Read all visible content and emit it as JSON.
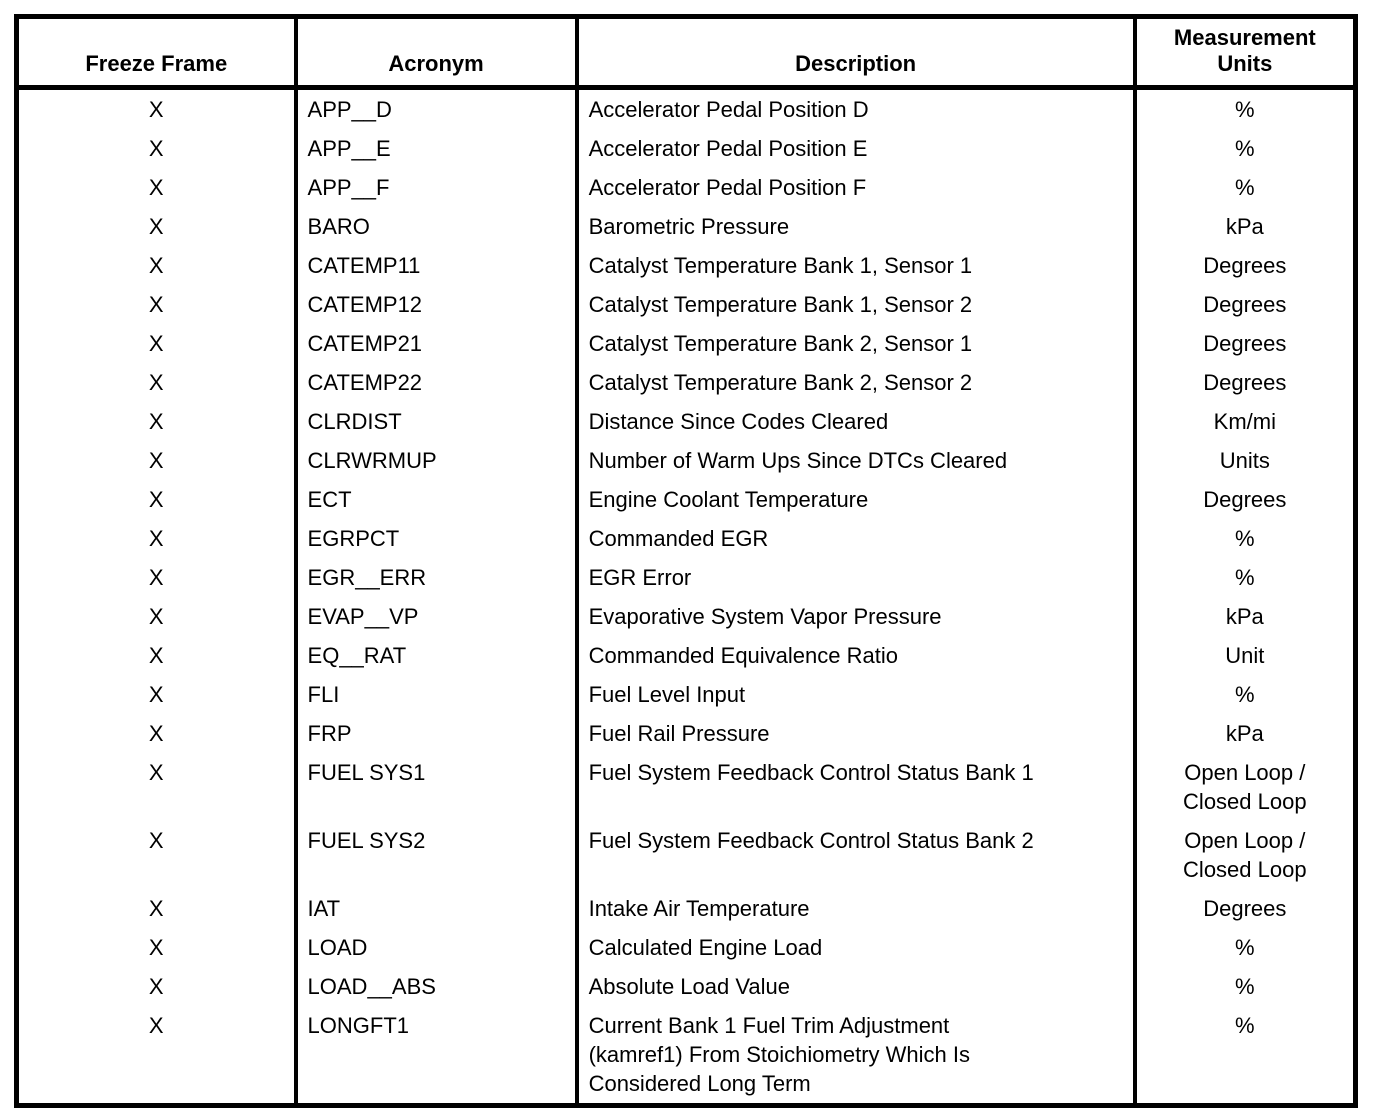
{
  "colors": {
    "background": "#ffffff",
    "border": "#000000",
    "text": "#000000"
  },
  "table": {
    "headers": {
      "freeze_frame": "Freeze Frame",
      "acronym": "Acronym",
      "description": "Description",
      "units": "Measurement\nUnits"
    },
    "rows": [
      {
        "freeze_frame": "X",
        "acronym": "APP__D",
        "description": "Accelerator Pedal Position D",
        "units": "%"
      },
      {
        "freeze_frame": "X",
        "acronym": "APP__E",
        "description": "Accelerator Pedal Position E",
        "units": "%"
      },
      {
        "freeze_frame": "X",
        "acronym": "APP__F",
        "description": "Accelerator Pedal Position F",
        "units": "%"
      },
      {
        "freeze_frame": "X",
        "acronym": "BARO",
        "description": "Barometric Pressure",
        "units": "kPa"
      },
      {
        "freeze_frame": "X",
        "acronym": "CATEMP11",
        "description": "Catalyst Temperature Bank 1, Sensor 1",
        "units": "Degrees"
      },
      {
        "freeze_frame": "X",
        "acronym": "CATEMP12",
        "description": "Catalyst Temperature Bank 1, Sensor 2",
        "units": "Degrees"
      },
      {
        "freeze_frame": "X",
        "acronym": "CATEMP21",
        "description": "Catalyst Temperature Bank 2, Sensor 1",
        "units": "Degrees"
      },
      {
        "freeze_frame": "X",
        "acronym": "CATEMP22",
        "description": "Catalyst Temperature Bank 2, Sensor 2",
        "units": "Degrees"
      },
      {
        "freeze_frame": "X",
        "acronym": "CLRDIST",
        "description": "Distance Since Codes Cleared",
        "units": "Km/mi"
      },
      {
        "freeze_frame": "X",
        "acronym": "CLRWRMUP",
        "description": "Number of Warm Ups Since DTCs Cleared",
        "units": "Units"
      },
      {
        "freeze_frame": "X",
        "acronym": "ECT",
        "description": "Engine Coolant Temperature",
        "units": "Degrees"
      },
      {
        "freeze_frame": "X",
        "acronym": "EGRPCT",
        "description": "Commanded EGR",
        "units": "%"
      },
      {
        "freeze_frame": "X",
        "acronym": "EGR__ERR",
        "description": "EGR Error",
        "units": "%"
      },
      {
        "freeze_frame": "X",
        "acronym": "EVAP__VP",
        "description": "Evaporative System Vapor Pressure",
        "units": "kPa"
      },
      {
        "freeze_frame": "X",
        "acronym": "EQ__RAT",
        "description": "Commanded Equivalence Ratio",
        "units": "Unit"
      },
      {
        "freeze_frame": "X",
        "acronym": "FLI",
        "description": "Fuel Level Input",
        "units": "%"
      },
      {
        "freeze_frame": "X",
        "acronym": "FRP",
        "description": "Fuel Rail Pressure",
        "units": "kPa"
      },
      {
        "freeze_frame": "X",
        "acronym": "FUEL SYS1",
        "description": "Fuel System Feedback Control Status Bank 1",
        "units": "Open Loop /\nClosed Loop"
      },
      {
        "freeze_frame": "X",
        "acronym": "FUEL SYS2",
        "description": "Fuel System Feedback Control Status Bank 2",
        "units": "Open Loop /\nClosed Loop"
      },
      {
        "freeze_frame": "X",
        "acronym": "IAT",
        "description": "Intake Air Temperature",
        "units": "Degrees"
      },
      {
        "freeze_frame": "X",
        "acronym": "LOAD",
        "description": "Calculated Engine Load",
        "units": "%"
      },
      {
        "freeze_frame": "X",
        "acronym": "LOAD__ABS",
        "description": "Absolute Load Value",
        "units": "%"
      },
      {
        "freeze_frame": "X",
        "acronym": "LONGFT1",
        "description": "Current Bank 1 Fuel Trim Adjustment\n(kamref1) From Stoichiometry Which Is\nConsidered Long Term",
        "units": "%"
      }
    ]
  }
}
